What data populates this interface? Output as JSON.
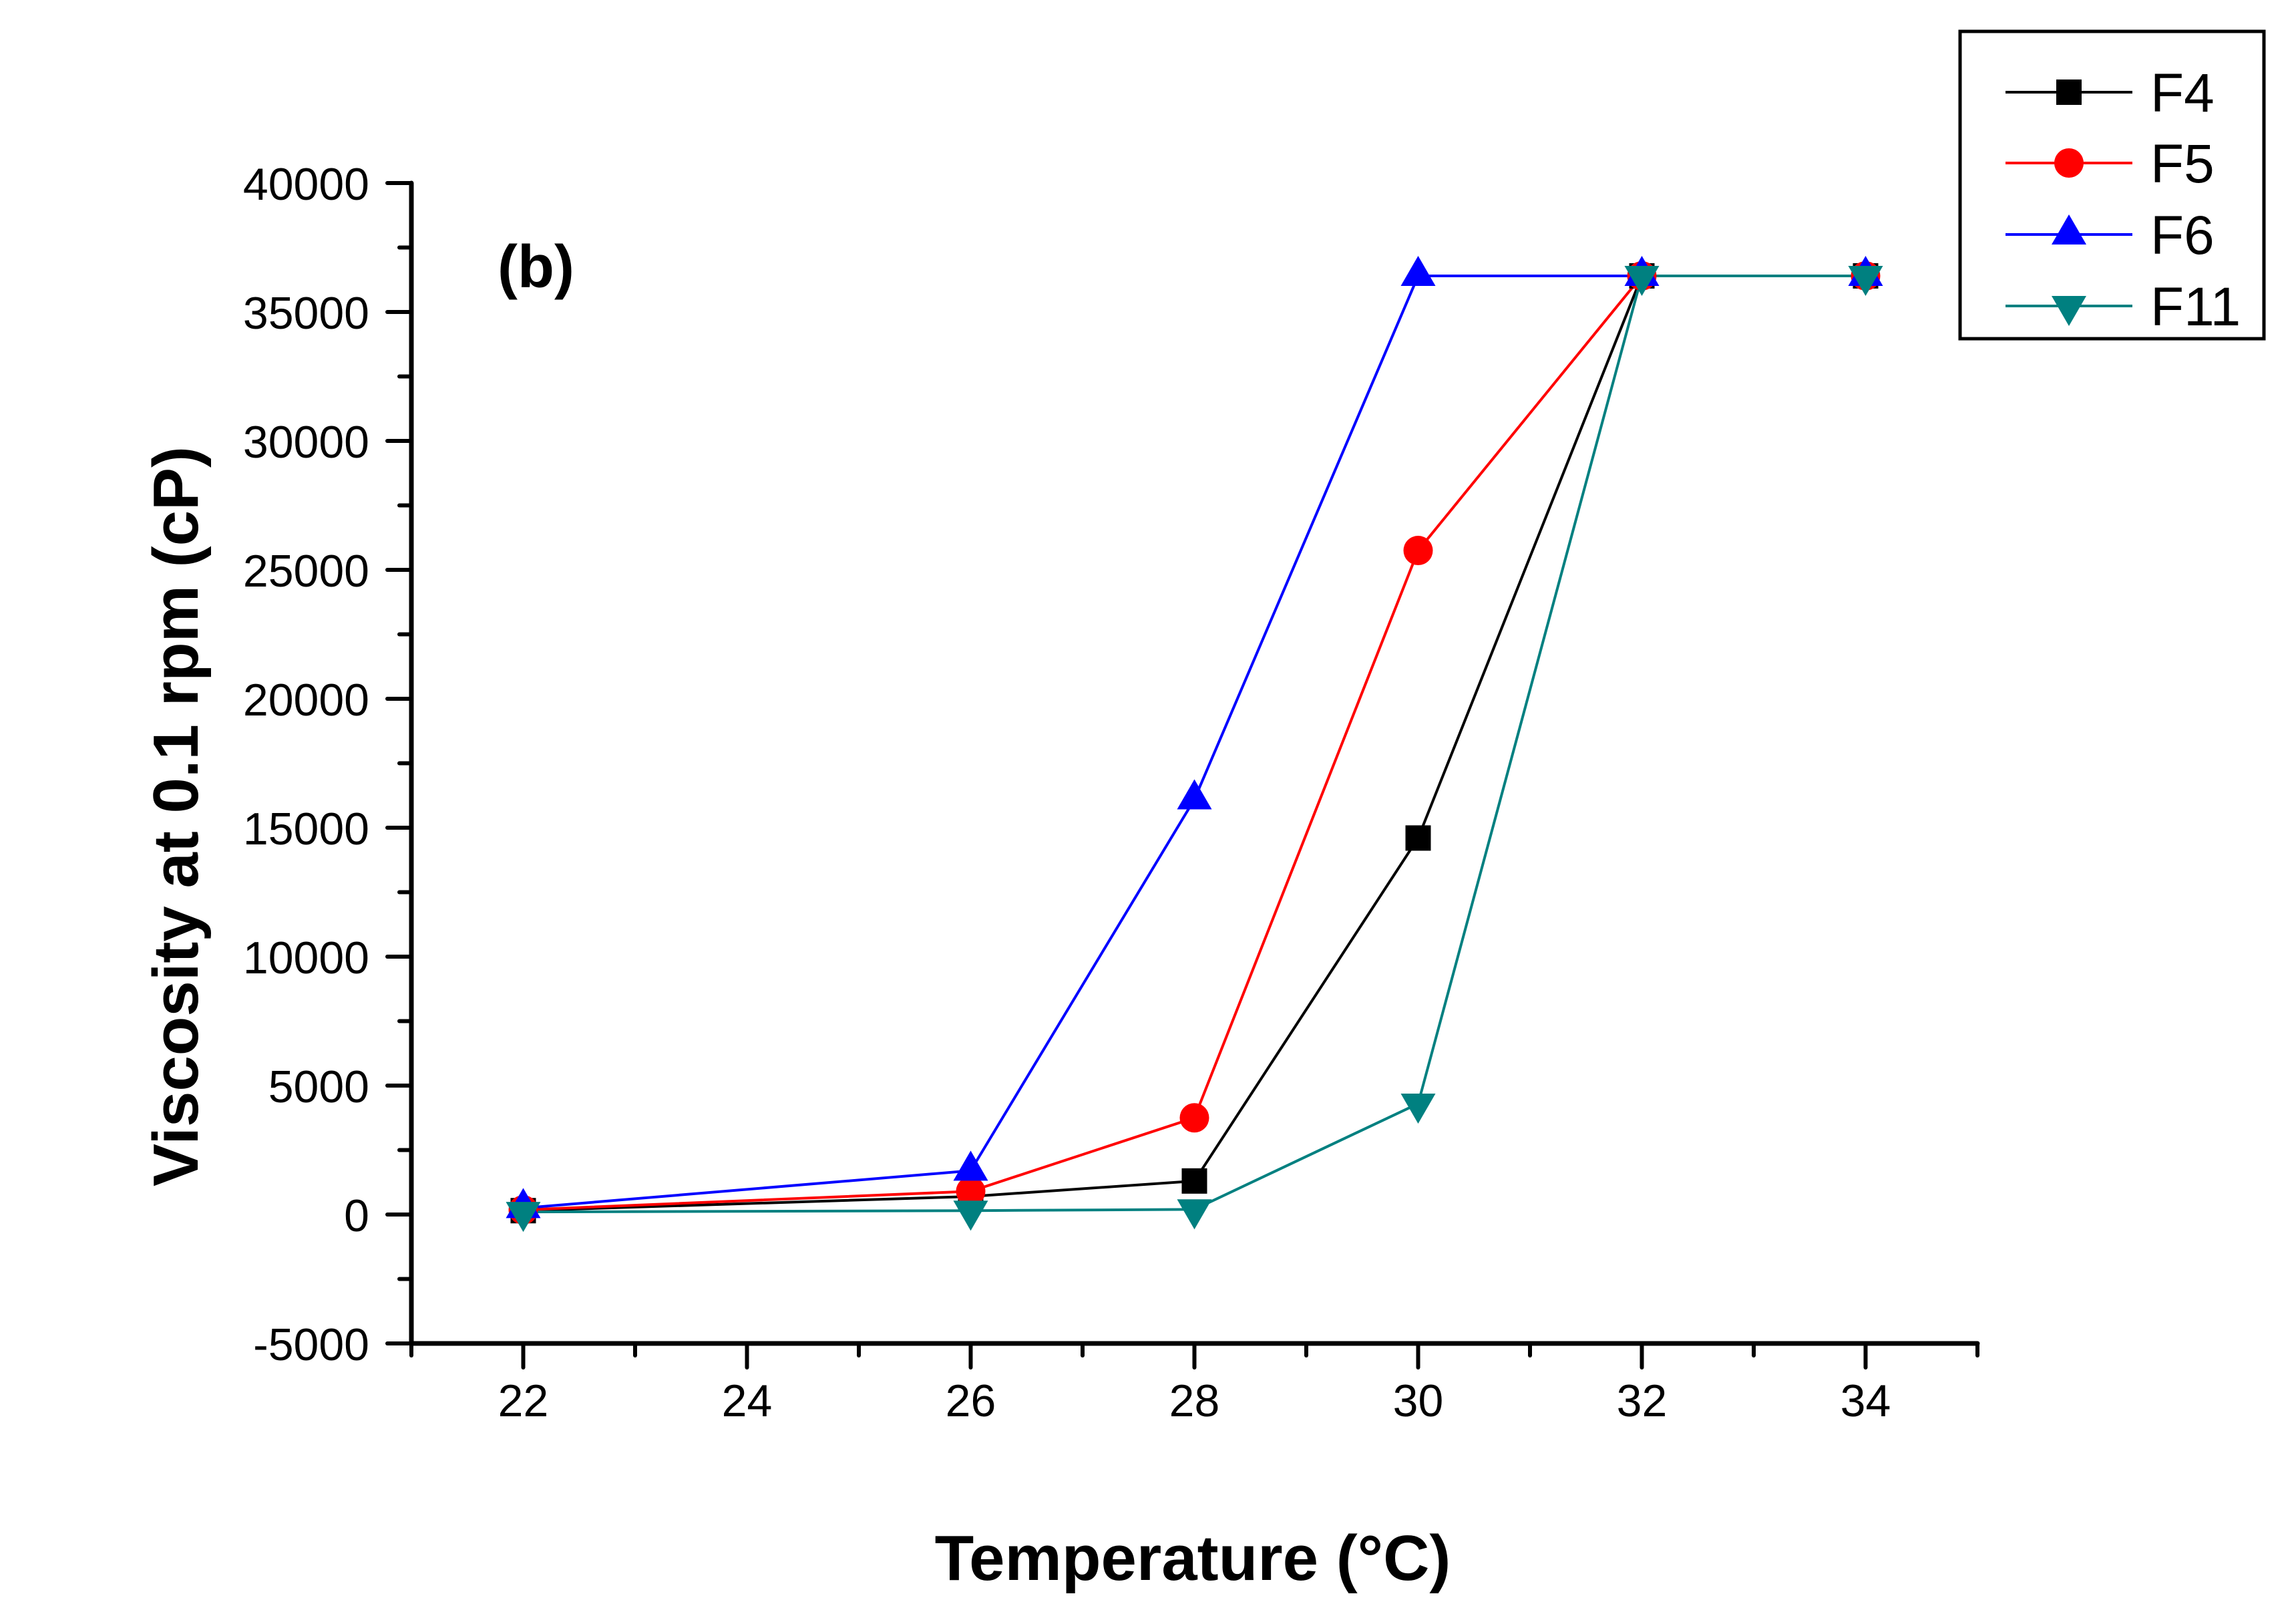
{
  "chart_data": {
    "type": "line",
    "title": "",
    "panel_label": "(b)",
    "xlabel": "Temperature (°C)",
    "ylabel": "Viscosity at 0.1 rpm (cP)",
    "xlim": [
      21,
      35
    ],
    "ylim": [
      -5000,
      40000
    ],
    "x_ticks": [
      22,
      24,
      26,
      28,
      30,
      32,
      34
    ],
    "x_tick_labels": [
      "22",
      "24",
      "26",
      "28",
      "30",
      "32",
      "34"
    ],
    "x_minor_ticks": [
      21,
      23,
      25,
      27,
      29,
      31,
      33,
      35
    ],
    "y_ticks": [
      -5000,
      0,
      5000,
      10000,
      15000,
      20000,
      25000,
      30000,
      35000,
      40000
    ],
    "y_tick_labels": [
      "-5000",
      "0",
      "5000",
      "10000",
      "15000",
      "20000",
      "25000",
      "30000",
      "35000",
      "40000"
    ],
    "y_minor_ticks": [
      -2500,
      2500,
      7500,
      12500,
      17500,
      22500,
      27500,
      32500,
      37500
    ],
    "grid": false,
    "legend_position": "top-right (outside plot)",
    "x": [
      22,
      26,
      28,
      30,
      32,
      34
    ],
    "series": [
      {
        "name": "F4",
        "color": "#000000",
        "marker": "square",
        "values": [
          150,
          700,
          1300,
          14600,
          36400,
          36400
        ]
      },
      {
        "name": "F5",
        "color": "#ff0000",
        "marker": "circle",
        "values": [
          180,
          900,
          3750,
          25750,
          36400,
          36400
        ]
      },
      {
        "name": "F6",
        "color": "#0000ff",
        "marker": "triangle-up",
        "values": [
          250,
          1700,
          16100,
          36400,
          36400,
          36400
        ]
      },
      {
        "name": "F11",
        "color": "#008080",
        "marker": "triangle-down",
        "values": [
          100,
          150,
          200,
          4300,
          36400,
          36400
        ]
      }
    ]
  }
}
